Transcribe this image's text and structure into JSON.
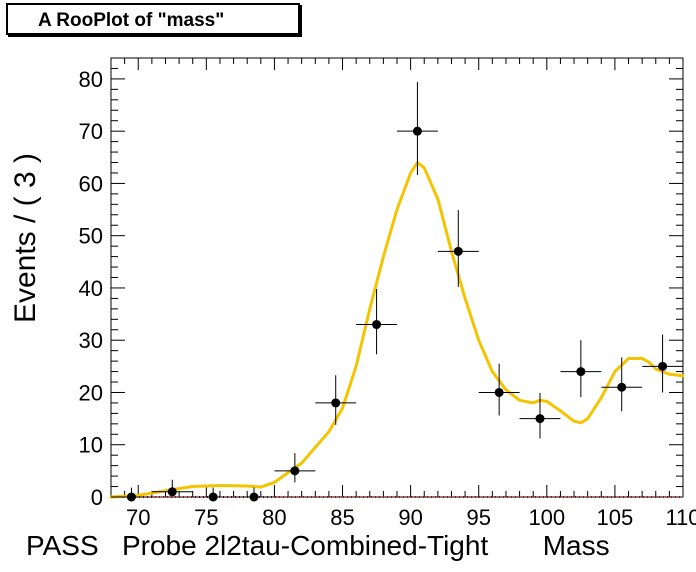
{
  "chart_data": {
    "type": "scatter",
    "title": "A RooPlot of \"mass\"",
    "ylabel": "Events / ( 3 )",
    "xlabel": "PASS   Probe 2l2tau-Combined-Tight       Mass",
    "xlim": [
      68,
      110
    ],
    "ylim": [
      0,
      84
    ],
    "x_ticks": [
      70,
      75,
      80,
      85,
      90,
      95,
      100,
      105,
      110
    ],
    "y_ticks": [
      0,
      10,
      20,
      30,
      40,
      50,
      60,
      70,
      80
    ],
    "grid": false,
    "series": [
      {
        "type": "points",
        "color": "#000000",
        "x": [
          69.5,
          72.5,
          75.5,
          78.5,
          81.5,
          84.5,
          87.5,
          90.5,
          93.5,
          96.5,
          99.5,
          102.5,
          105.5,
          108.5
        ],
        "y": [
          0,
          1,
          0,
          0,
          5,
          18,
          33,
          70,
          47,
          20,
          15,
          24,
          21,
          25
        ],
        "yerr_low": [
          0,
          0.8,
          0,
          0,
          2.2,
          4.2,
          5.7,
          8.4,
          6.8,
          4.4,
          3.8,
          4.9,
          4.6,
          5.0
        ],
        "yerr_high": [
          1.8,
          2.3,
          1.8,
          1.8,
          3.4,
          5.3,
          6.8,
          9.4,
          7.9,
          5.5,
          4.9,
          6.0,
          5.7,
          6.1
        ],
        "xerr": 1.5
      },
      {
        "type": "line",
        "color": "#f5c400",
        "x": [
          68,
          70,
          72,
          74,
          76,
          78,
          79,
          80,
          82,
          84,
          85,
          86,
          87,
          88,
          89,
          90,
          90.5,
          91,
          92,
          93,
          94,
          95,
          96,
          97,
          98,
          99,
          99.5,
          100,
          101,
          102,
          102.5,
          103,
          104,
          105,
          106,
          107,
          107.5,
          108,
          109,
          110
        ],
        "y": [
          0,
          0.3,
          1.2,
          2.0,
          2.2,
          2.1,
          1.9,
          2.8,
          6.5,
          12.5,
          17,
          25,
          36,
          46,
          55,
          62,
          64,
          63,
          57,
          47,
          38,
          30,
          24,
          20.5,
          18.5,
          18,
          18.5,
          18.3,
          16.5,
          14.5,
          14.2,
          15,
          19,
          24,
          26.5,
          26.5,
          25.8,
          24.5,
          23.5,
          23.2
        ]
      },
      {
        "type": "dotted-baseline",
        "color": "#cc0000",
        "y": 0
      }
    ]
  }
}
